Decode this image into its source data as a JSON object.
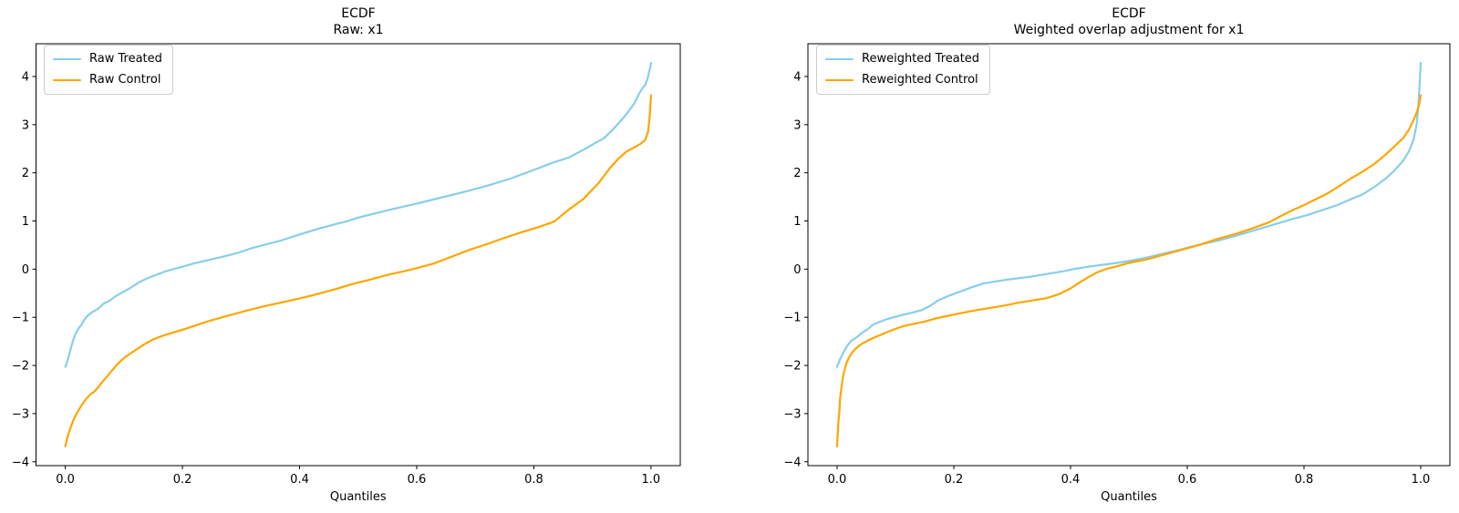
{
  "figure": {
    "background": "#ffffff"
  },
  "colors": {
    "treated": "#87CEEB",
    "control": "#FFA500",
    "axis": "#000000",
    "legend_border": "#cccccc",
    "text": "#000000"
  },
  "chart_data": [
    {
      "type": "line",
      "title_line1": "ECDF",
      "title_line2": "Raw: x1",
      "xlabel": "Quantiles",
      "xlim": [
        -0.05,
        1.05
      ],
      "ylim": [
        -4.08,
        4.68
      ],
      "grid": false,
      "legend_position": "upper left",
      "xticks": {
        "values": [
          0.0,
          0.2,
          0.4,
          0.6,
          0.8,
          1.0
        ],
        "labels": [
          "0.0",
          "0.2",
          "0.4",
          "0.6",
          "0.8",
          "1.0"
        ]
      },
      "yticks": {
        "values": [
          -4,
          -3,
          -2,
          -1,
          0,
          1,
          2,
          3,
          4
        ],
        "labels": [
          "−4",
          "−3",
          "−2",
          "−1",
          "0",
          "1",
          "2",
          "3",
          "4"
        ]
      },
      "legend": [
        {
          "label": "Raw Treated",
          "color_key": "treated"
        },
        {
          "label": "Raw Control",
          "color_key": "control"
        }
      ],
      "series": [
        {
          "name": "Raw Treated",
          "color_key": "treated",
          "points": [
            [
              0.0,
              -2.03
            ],
            [
              0.003,
              -1.93
            ],
            [
              0.006,
              -1.8
            ],
            [
              0.01,
              -1.62
            ],
            [
              0.014,
              -1.45
            ],
            [
              0.018,
              -1.33
            ],
            [
              0.022,
              -1.24
            ],
            [
              0.027,
              -1.17
            ],
            [
              0.032,
              -1.06
            ],
            [
              0.037,
              -0.98
            ],
            [
              0.045,
              -0.9
            ],
            [
              0.055,
              -0.83
            ],
            [
              0.06,
              -0.78
            ],
            [
              0.065,
              -0.72
            ],
            [
              0.075,
              -0.66
            ],
            [
              0.085,
              -0.57
            ],
            [
              0.095,
              -0.5
            ],
            [
              0.11,
              -0.4
            ],
            [
              0.125,
              -0.28
            ],
            [
              0.14,
              -0.19
            ],
            [
              0.155,
              -0.12
            ],
            [
              0.17,
              -0.05
            ],
            [
              0.185,
              0.0
            ],
            [
              0.2,
              0.05
            ],
            [
              0.22,
              0.12
            ],
            [
              0.245,
              0.19
            ],
            [
              0.27,
              0.26
            ],
            [
              0.295,
              0.34
            ],
            [
              0.32,
              0.44
            ],
            [
              0.345,
              0.52
            ],
            [
              0.37,
              0.6
            ],
            [
              0.4,
              0.72
            ],
            [
              0.43,
              0.83
            ],
            [
              0.46,
              0.93
            ],
            [
              0.48,
              0.99
            ],
            [
              0.5,
              1.07
            ],
            [
              0.53,
              1.16
            ],
            [
              0.56,
              1.25
            ],
            [
              0.6,
              1.36
            ],
            [
              0.64,
              1.48
            ],
            [
              0.68,
              1.6
            ],
            [
              0.72,
              1.73
            ],
            [
              0.76,
              1.88
            ],
            [
              0.8,
              2.06
            ],
            [
              0.83,
              2.2
            ],
            [
              0.86,
              2.32
            ],
            [
              0.885,
              2.48
            ],
            [
              0.905,
              2.62
            ],
            [
              0.92,
              2.72
            ],
            [
              0.935,
              2.9
            ],
            [
              0.95,
              3.1
            ],
            [
              0.962,
              3.28
            ],
            [
              0.972,
              3.45
            ],
            [
              0.98,
              3.65
            ],
            [
              0.985,
              3.75
            ],
            [
              0.99,
              3.82
            ],
            [
              0.994,
              3.95
            ],
            [
              0.997,
              4.1
            ],
            [
              1.0,
              4.28
            ]
          ]
        },
        {
          "name": "Raw Control",
          "color_key": "control",
          "points": [
            [
              0.0,
              -3.68
            ],
            [
              0.003,
              -3.52
            ],
            [
              0.006,
              -3.4
            ],
            [
              0.01,
              -3.26
            ],
            [
              0.014,
              -3.13
            ],
            [
              0.019,
              -3.01
            ],
            [
              0.024,
              -2.9
            ],
            [
              0.03,
              -2.79
            ],
            [
              0.036,
              -2.69
            ],
            [
              0.043,
              -2.6
            ],
            [
              0.05,
              -2.54
            ],
            [
              0.057,
              -2.44
            ],
            [
              0.064,
              -2.33
            ],
            [
              0.072,
              -2.22
            ],
            [
              0.08,
              -2.1
            ],
            [
              0.09,
              -1.96
            ],
            [
              0.1,
              -1.85
            ],
            [
              0.11,
              -1.76
            ],
            [
              0.12,
              -1.68
            ],
            [
              0.135,
              -1.56
            ],
            [
              0.15,
              -1.46
            ],
            [
              0.165,
              -1.39
            ],
            [
              0.18,
              -1.33
            ],
            [
              0.2,
              -1.26
            ],
            [
              0.22,
              -1.18
            ],
            [
              0.25,
              -1.06
            ],
            [
              0.28,
              -0.96
            ],
            [
              0.31,
              -0.86
            ],
            [
              0.34,
              -0.77
            ],
            [
              0.37,
              -0.69
            ],
            [
              0.4,
              -0.61
            ],
            [
              0.43,
              -0.52
            ],
            [
              0.46,
              -0.42
            ],
            [
              0.49,
              -0.31
            ],
            [
              0.52,
              -0.22
            ],
            [
              0.55,
              -0.12
            ],
            [
              0.58,
              -0.04
            ],
            [
              0.6,
              0.02
            ],
            [
              0.63,
              0.12
            ],
            [
              0.66,
              0.26
            ],
            [
              0.69,
              0.4
            ],
            [
              0.72,
              0.52
            ],
            [
              0.75,
              0.65
            ],
            [
              0.78,
              0.77
            ],
            [
              0.81,
              0.88
            ],
            [
              0.835,
              0.99
            ],
            [
              0.86,
              1.24
            ],
            [
              0.885,
              1.46
            ],
            [
              0.91,
              1.78
            ],
            [
              0.93,
              2.1
            ],
            [
              0.945,
              2.3
            ],
            [
              0.958,
              2.44
            ],
            [
              0.97,
              2.52
            ],
            [
              0.982,
              2.6
            ],
            [
              0.99,
              2.68
            ],
            [
              0.995,
              2.85
            ],
            [
              0.998,
              3.2
            ],
            [
              1.0,
              3.61
            ]
          ]
        }
      ]
    },
    {
      "type": "line",
      "title_line1": "ECDF",
      "title_line2": "Weighted overlap adjustment for x1",
      "xlabel": "Quantiles",
      "xlim": [
        -0.05,
        1.05
      ],
      "ylim": [
        -4.08,
        4.68
      ],
      "grid": false,
      "legend_position": "upper left",
      "xticks": {
        "values": [
          0.0,
          0.2,
          0.4,
          0.6,
          0.8,
          1.0
        ],
        "labels": [
          "0.0",
          "0.2",
          "0.4",
          "0.6",
          "0.8",
          "1.0"
        ]
      },
      "yticks": {
        "values": [
          -4,
          -3,
          -2,
          -1,
          0,
          1,
          2,
          3,
          4
        ],
        "labels": [
          "−4",
          "−3",
          "−2",
          "−1",
          "0",
          "1",
          "2",
          "3",
          "4"
        ]
      },
      "legend": [
        {
          "label": "Reweighted Treated",
          "color_key": "treated"
        },
        {
          "label": "Reweighted Control",
          "color_key": "control"
        }
      ],
      "series": [
        {
          "name": "Reweighted Treated",
          "color_key": "treated",
          "points": [
            [
              0.0,
              -2.03
            ],
            [
              0.004,
              -1.9
            ],
            [
              0.008,
              -1.8
            ],
            [
              0.013,
              -1.68
            ],
            [
              0.018,
              -1.58
            ],
            [
              0.025,
              -1.48
            ],
            [
              0.033,
              -1.42
            ],
            [
              0.042,
              -1.33
            ],
            [
              0.052,
              -1.25
            ],
            [
              0.062,
              -1.15
            ],
            [
              0.072,
              -1.1
            ],
            [
              0.085,
              -1.04
            ],
            [
              0.1,
              -0.99
            ],
            [
              0.115,
              -0.94
            ],
            [
              0.13,
              -0.9
            ],
            [
              0.145,
              -0.85
            ],
            [
              0.16,
              -0.76
            ],
            [
              0.173,
              -0.65
            ],
            [
              0.19,
              -0.56
            ],
            [
              0.21,
              -0.47
            ],
            [
              0.23,
              -0.38
            ],
            [
              0.25,
              -0.3
            ],
            [
              0.27,
              -0.26
            ],
            [
              0.29,
              -0.22
            ],
            [
              0.31,
              -0.19
            ],
            [
              0.33,
              -0.16
            ],
            [
              0.35,
              -0.12
            ],
            [
              0.37,
              -0.08
            ],
            [
              0.39,
              -0.04
            ],
            [
              0.405,
              0.0
            ],
            [
              0.43,
              0.05
            ],
            [
              0.455,
              0.09
            ],
            [
              0.48,
              0.13
            ],
            [
              0.505,
              0.18
            ],
            [
              0.53,
              0.24
            ],
            [
              0.555,
              0.31
            ],
            [
              0.58,
              0.38
            ],
            [
              0.605,
              0.46
            ],
            [
              0.63,
              0.53
            ],
            [
              0.655,
              0.6
            ],
            [
              0.68,
              0.68
            ],
            [
              0.705,
              0.77
            ],
            [
              0.73,
              0.86
            ],
            [
              0.755,
              0.95
            ],
            [
              0.78,
              1.04
            ],
            [
              0.805,
              1.12
            ],
            [
              0.83,
              1.22
            ],
            [
              0.855,
              1.32
            ],
            [
              0.88,
              1.45
            ],
            [
              0.9,
              1.55
            ],
            [
              0.92,
              1.7
            ],
            [
              0.94,
              1.88
            ],
            [
              0.955,
              2.05
            ],
            [
              0.97,
              2.25
            ],
            [
              0.98,
              2.45
            ],
            [
              0.988,
              2.7
            ],
            [
              0.993,
              3.0
            ],
            [
              0.996,
              3.4
            ],
            [
              0.998,
              3.8
            ],
            [
              1.0,
              4.28
            ]
          ]
        },
        {
          "name": "Reweighted Control",
          "color_key": "control",
          "points": [
            [
              0.0,
              -3.68
            ],
            [
              0.001,
              -3.45
            ],
            [
              0.002,
              -3.2
            ],
            [
              0.004,
              -2.95
            ],
            [
              0.005,
              -2.7
            ],
            [
              0.007,
              -2.5
            ],
            [
              0.009,
              -2.32
            ],
            [
              0.011,
              -2.18
            ],
            [
              0.014,
              -2.04
            ],
            [
              0.017,
              -1.92
            ],
            [
              0.021,
              -1.82
            ],
            [
              0.026,
              -1.73
            ],
            [
              0.032,
              -1.65
            ],
            [
              0.04,
              -1.57
            ],
            [
              0.05,
              -1.5
            ],
            [
              0.06,
              -1.44
            ],
            [
              0.072,
              -1.38
            ],
            [
              0.085,
              -1.31
            ],
            [
              0.1,
              -1.24
            ],
            [
              0.115,
              -1.18
            ],
            [
              0.13,
              -1.14
            ],
            [
              0.15,
              -1.09
            ],
            [
              0.17,
              -1.02
            ],
            [
              0.19,
              -0.97
            ],
            [
              0.21,
              -0.92
            ],
            [
              0.235,
              -0.86
            ],
            [
              0.26,
              -0.81
            ],
            [
              0.285,
              -0.76
            ],
            [
              0.31,
              -0.7
            ],
            [
              0.335,
              -0.65
            ],
            [
              0.36,
              -0.6
            ],
            [
              0.38,
              -0.52
            ],
            [
              0.4,
              -0.4
            ],
            [
              0.415,
              -0.28
            ],
            [
              0.43,
              -0.17
            ],
            [
              0.445,
              -0.07
            ],
            [
              0.46,
              0.0
            ],
            [
              0.48,
              0.06
            ],
            [
              0.5,
              0.13
            ],
            [
              0.53,
              0.2
            ],
            [
              0.56,
              0.3
            ],
            [
              0.59,
              0.4
            ],
            [
              0.62,
              0.5
            ],
            [
              0.65,
              0.62
            ],
            [
              0.68,
              0.72
            ],
            [
              0.71,
              0.84
            ],
            [
              0.74,
              0.97
            ],
            [
              0.76,
              1.1
            ],
            [
              0.78,
              1.22
            ],
            [
              0.8,
              1.33
            ],
            [
              0.82,
              1.45
            ],
            [
              0.84,
              1.57
            ],
            [
              0.86,
              1.72
            ],
            [
              0.88,
              1.88
            ],
            [
              0.9,
              2.02
            ],
            [
              0.92,
              2.18
            ],
            [
              0.94,
              2.38
            ],
            [
              0.955,
              2.55
            ],
            [
              0.97,
              2.72
            ],
            [
              0.98,
              2.9
            ],
            [
              0.988,
              3.1
            ],
            [
              0.993,
              3.25
            ],
            [
              0.997,
              3.4
            ],
            [
              1.0,
              3.61
            ]
          ]
        }
      ]
    }
  ]
}
